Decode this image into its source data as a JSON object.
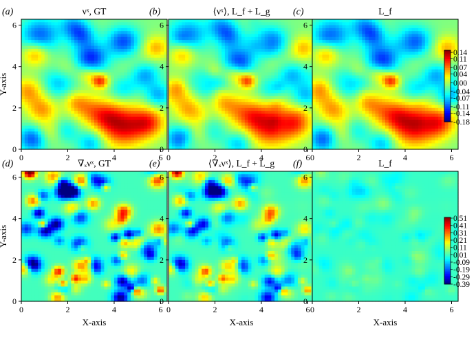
{
  "chart_data": [
    {
      "type": "heatmap",
      "panel_letter": "(a)",
      "title": "νˣ, GT",
      "xlabel": "",
      "ylabel": "Y-axis",
      "xlim": [
        0,
        6.283
      ],
      "ylim": [
        0,
        6.283
      ],
      "xticks": [
        0,
        2,
        4,
        6
      ],
      "yticks": [
        0,
        2,
        4,
        6
      ],
      "colormap": "jet",
      "field": "velocity",
      "mode": "gt",
      "colorbar_row": "top"
    },
    {
      "type": "heatmap",
      "panel_letter": "(b)",
      "title": "⟨νˣ⟩, L_f + L_g",
      "xlabel": "",
      "ylabel": "",
      "xlim": [
        0,
        6.283
      ],
      "ylim": [
        0,
        6.283
      ],
      "xticks": [
        0,
        2,
        4,
        6
      ],
      "yticks": [
        0,
        2,
        4,
        6
      ],
      "colormap": "jet",
      "field": "velocity",
      "mode": "lflg",
      "colorbar_row": "top"
    },
    {
      "type": "heatmap",
      "panel_letter": "(c)",
      "title": "L_f",
      "xlabel": "",
      "ylabel": "",
      "xlim": [
        0,
        6.283
      ],
      "ylim": [
        0,
        6.283
      ],
      "xticks": [
        0,
        2,
        4,
        6
      ],
      "yticks": [
        0,
        2,
        4,
        6
      ],
      "colormap": "jet",
      "field": "velocity",
      "mode": "lf",
      "colorbar_row": "top"
    },
    {
      "type": "heatmap",
      "panel_letter": "(d)",
      "title": "∇ₓνˣ, GT",
      "xlabel": "X-axis",
      "ylabel": "Y-axis",
      "xlim": [
        0,
        6.283
      ],
      "ylim": [
        0,
        6.283
      ],
      "xticks": [
        0,
        2,
        4,
        6
      ],
      "yticks": [
        0,
        2,
        4,
        6
      ],
      "colormap": "jet",
      "field": "gradient",
      "mode": "gt",
      "colorbar_row": "bottom"
    },
    {
      "type": "heatmap",
      "panel_letter": "(e)",
      "title": "⟨∇ₓνˣ⟩, L_f + L_g",
      "xlabel": "X-axis",
      "ylabel": "",
      "xlim": [
        0,
        6.283
      ],
      "ylim": [
        0,
        6.283
      ],
      "xticks": [
        0,
        2,
        4,
        6
      ],
      "yticks": [
        0,
        2,
        4,
        6
      ],
      "colormap": "jet",
      "field": "gradient",
      "mode": "lflg",
      "colorbar_row": "bottom"
    },
    {
      "type": "heatmap",
      "panel_letter": "(f)",
      "title": "L_f",
      "xlabel": "X-axis",
      "ylabel": "",
      "xlim": [
        0,
        6.283
      ],
      "ylim": [
        0,
        6.283
      ],
      "xticks": [
        0,
        2,
        4,
        6
      ],
      "yticks": [
        0,
        2,
        4,
        6
      ],
      "colormap": "jet",
      "field": "gradient",
      "mode": "lf",
      "colorbar_row": "bottom"
    }
  ],
  "colorbars": [
    {
      "row": "top",
      "ticks": [
        "0.14",
        "0.11",
        "0.07",
        "0.04",
        "0.00",
        "-0.04",
        "-0.07",
        "-0.11",
        "-0.14",
        "-0.18"
      ],
      "vmin": -0.18,
      "vmax": 0.15
    },
    {
      "row": "bottom",
      "ticks": [
        "0.51",
        "0.41",
        "0.31",
        "0.21",
        "0.11",
        "0.01",
        "-0.09",
        "-0.19",
        "-0.29",
        "-0.39"
      ],
      "vmin": -0.39,
      "vmax": 0.52
    }
  ],
  "colors": {
    "axis": "#000000",
    "background": "#ffffff"
  }
}
